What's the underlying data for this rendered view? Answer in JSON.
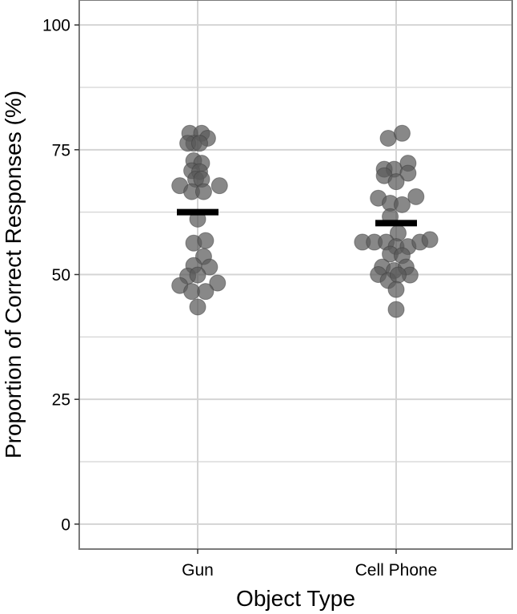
{
  "chart_data": {
    "type": "scatter",
    "subtype": "dot-plot-with-mean",
    "title": "",
    "xlabel": "Object Type",
    "ylabel": "Proportion of Correct Responses (%)",
    "categories": [
      "Gun",
      "Cell Phone"
    ],
    "ylim": [
      -5,
      105
    ],
    "yticks": [
      "0",
      "25",
      "50",
      "75",
      "100"
    ],
    "grid": true,
    "legend": "none",
    "colors": {
      "point": "#5a5a5a",
      "mean": "#000000",
      "grid": "#d4d4d4",
      "border": "#7a7a7a"
    },
    "series": [
      {
        "category": "Gun",
        "mean": 62.5,
        "points": [
          {
            "x": -0.04,
            "y": 78.3
          },
          {
            "x": 0.02,
            "y": 78.3
          },
          {
            "x": -0.02,
            "y": 76.3
          },
          {
            "x": 0.05,
            "y": 77.3
          },
          {
            "x": -0.05,
            "y": 76.3
          },
          {
            "x": 0.01,
            "y": 76.3
          },
          {
            "x": -0.02,
            "y": 72.8
          },
          {
            "x": 0.02,
            "y": 72.3
          },
          {
            "x": -0.03,
            "y": 70.8
          },
          {
            "x": 0.01,
            "y": 70.6
          },
          {
            "x": -0.01,
            "y": 69.1
          },
          {
            "x": 0.02,
            "y": 69.1
          },
          {
            "x": -0.09,
            "y": 67.8
          },
          {
            "x": -0.03,
            "y": 66.6
          },
          {
            "x": 0.03,
            "y": 66.6
          },
          {
            "x": 0.11,
            "y": 67.8
          },
          {
            "x": 0.0,
            "y": 61.1
          },
          {
            "x": -0.02,
            "y": 56.3
          },
          {
            "x": 0.04,
            "y": 56.8
          },
          {
            "x": 0.03,
            "y": 53.6
          },
          {
            "x": -0.02,
            "y": 51.8
          },
          {
            "x": 0.06,
            "y": 51.5
          },
          {
            "x": -0.05,
            "y": 49.7
          },
          {
            "x": 0.0,
            "y": 49.9
          },
          {
            "x": -0.09,
            "y": 47.8
          },
          {
            "x": 0.1,
            "y": 48.3
          },
          {
            "x": -0.03,
            "y": 46.6
          },
          {
            "x": 0.04,
            "y": 46.6
          },
          {
            "x": 0.0,
            "y": 43.5
          }
        ]
      },
      {
        "category": "Cell Phone",
        "mean": 60.3,
        "points": [
          {
            "x": -0.04,
            "y": 77.3
          },
          {
            "x": 0.03,
            "y": 78.3
          },
          {
            "x": -0.06,
            "y": 71.1
          },
          {
            "x": -0.01,
            "y": 71.1
          },
          {
            "x": 0.06,
            "y": 72.3
          },
          {
            "x": -0.06,
            "y": 69.8
          },
          {
            "x": 0.06,
            "y": 70.3
          },
          {
            "x": 0.0,
            "y": 68.6
          },
          {
            "x": -0.09,
            "y": 65.3
          },
          {
            "x": -0.03,
            "y": 64.3
          },
          {
            "x": 0.03,
            "y": 64.0
          },
          {
            "x": 0.1,
            "y": 65.6
          },
          {
            "x": -0.03,
            "y": 61.6
          },
          {
            "x": 0.01,
            "y": 58.3
          },
          {
            "x": -0.17,
            "y": 56.5
          },
          {
            "x": -0.11,
            "y": 56.5
          },
          {
            "x": -0.05,
            "y": 56.5
          },
          {
            "x": 0.0,
            "y": 55.6
          },
          {
            "x": 0.06,
            "y": 55.6
          },
          {
            "x": 0.12,
            "y": 56.5
          },
          {
            "x": 0.17,
            "y": 57.0
          },
          {
            "x": -0.03,
            "y": 54.1
          },
          {
            "x": 0.03,
            "y": 53.8
          },
          {
            "x": -0.07,
            "y": 51.5
          },
          {
            "x": -0.01,
            "y": 50.8
          },
          {
            "x": 0.05,
            "y": 51.5
          },
          {
            "x": -0.09,
            "y": 50.0
          },
          {
            "x": 0.07,
            "y": 49.9
          },
          {
            "x": -0.04,
            "y": 48.8
          },
          {
            "x": 0.01,
            "y": 49.9
          },
          {
            "x": 0.0,
            "y": 47.0
          },
          {
            "x": 0.0,
            "y": 43.0
          }
        ]
      }
    ]
  }
}
